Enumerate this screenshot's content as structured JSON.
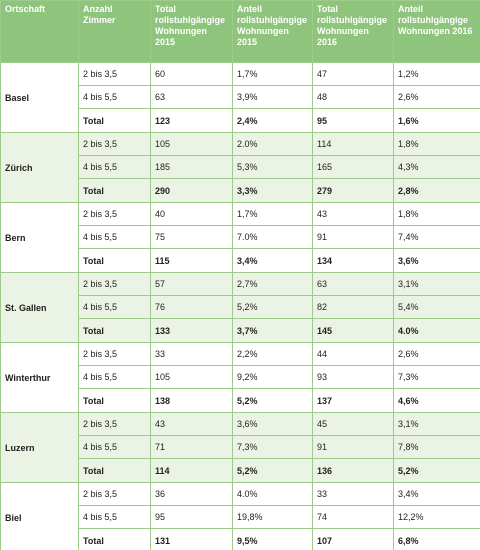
{
  "header": [
    "Ortschaft",
    "Anzahl Zimmer",
    "Total rollstuhlgängige Wohnungen 2015",
    "Anteil rollstuhlgängige Wohnungen 2015",
    "Total rollstuhlgängige Wohnungen 2016",
    "Anteil rollstuhlgängige Wohnungen 2016"
  ],
  "groups": [
    {
      "place": "Basel",
      "rows": [
        [
          "2 bis 3,5",
          "60",
          "1,7%",
          "47",
          "1,2%"
        ],
        [
          "4 bis 5,5",
          "63",
          "3,9%",
          "48",
          "2,6%"
        ],
        [
          "Total",
          "123",
          "2,4%",
          "95",
          "1,6%"
        ]
      ]
    },
    {
      "place": "Zürich",
      "rows": [
        [
          "2 bis 3,5",
          "105",
          "2.0%",
          "114",
          "1,8%"
        ],
        [
          "4 bis 5,5",
          "185",
          "5,3%",
          "165",
          "4,3%"
        ],
        [
          "Total",
          "290",
          "3,3%",
          "279",
          "2,8%"
        ]
      ]
    },
    {
      "place": "Bern",
      "rows": [
        [
          "2 bis 3,5",
          "40",
          "1,7%",
          "43",
          "1,8%"
        ],
        [
          "4 bis 5,5",
          "75",
          "7.0%",
          "91",
          "7,4%"
        ],
        [
          "Total",
          "115",
          "3,4%",
          "134",
          "3,6%"
        ]
      ]
    },
    {
      "place": "St. Gallen",
      "rows": [
        [
          "2 bis 3,5",
          "57",
          "2,7%",
          "63",
          "3,1%"
        ],
        [
          "4 bis 5,5",
          "76",
          "5,2%",
          "82",
          "5,4%"
        ],
        [
          "Total",
          "133",
          "3,7%",
          "145",
          "4.0%"
        ]
      ]
    },
    {
      "place": "Winterthur",
      "rows": [
        [
          "2 bis 3,5",
          "33",
          "2,2%",
          "44",
          "2,6%"
        ],
        [
          "4 bis 5,5",
          "105",
          "9,2%",
          "93",
          "7,3%"
        ],
        [
          "Total",
          "138",
          "5,2%",
          "137",
          "4,6%"
        ]
      ]
    },
    {
      "place": "Luzern",
      "rows": [
        [
          "2 bis 3,5",
          "43",
          "3,6%",
          "45",
          "3,1%"
        ],
        [
          "4 bis 5,5",
          "71",
          "7,3%",
          "91",
          "7,8%"
        ],
        [
          "Total",
          "114",
          "5,2%",
          "136",
          "5,2%"
        ]
      ]
    },
    {
      "place": "Biel",
      "rows": [
        [
          "2 bis 3,5",
          "36",
          "4.0%",
          "33",
          "3,4%"
        ],
        [
          "4 bis 5,5",
          "95",
          "19,8%",
          "74",
          "12,2%"
        ],
        [
          "Total",
          "131",
          "9,5%",
          "107",
          "6,8%"
        ]
      ]
    }
  ]
}
